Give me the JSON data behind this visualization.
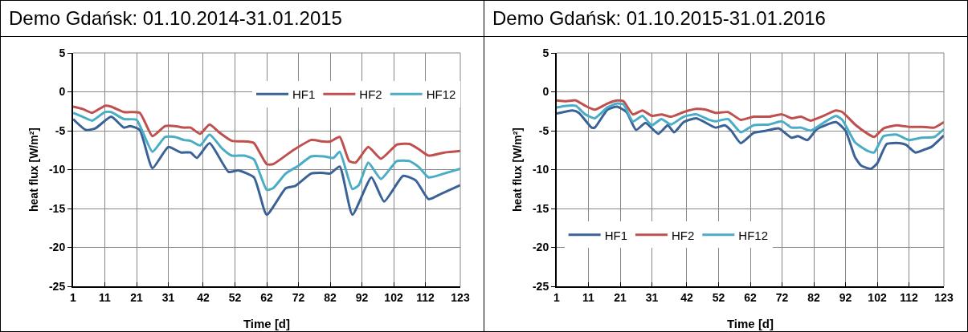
{
  "chart_data": [
    {
      "type": "line",
      "title": "Demo Gdańsk: 01.10.2014-31.01.2015",
      "xlabel": "Time [d]",
      "ylabel": "heat flux [W/m²]",
      "xlim": [
        1,
        123
      ],
      "xticks": [
        1,
        11,
        21,
        31,
        42,
        52,
        62,
        72,
        82,
        92,
        102,
        112,
        123
      ],
      "ylim": [
        -25,
        5
      ],
      "yticks": [
        -25,
        -20,
        -15,
        -10,
        -5,
        0,
        5
      ],
      "grid": true,
      "legend": "top right",
      "marker": "none",
      "line_style": "solid",
      "series": [
        {
          "name": "HF1",
          "color": "#3a6296",
          "x": [
            1,
            5,
            8,
            13,
            17,
            19,
            22,
            26,
            31,
            35,
            38,
            40,
            44,
            50,
            53,
            58,
            62,
            68,
            71,
            76,
            79,
            82,
            85,
            89,
            95,
            99,
            105,
            109,
            113,
            117,
            123
          ],
          "values": [
            -3.5,
            -4.9,
            -4.7,
            -3.2,
            -4.6,
            -4.4,
            -4.9,
            -9.8,
            -7.1,
            -7.8,
            -7.8,
            -8.5,
            -6.6,
            -10.3,
            -10.1,
            -11.0,
            -15.8,
            -12.4,
            -12.1,
            -10.5,
            -10.4,
            -10.5,
            -9.6,
            -15.8,
            -11.0,
            -14.1,
            -10.8,
            -11.4,
            -13.8,
            -13.1,
            -12.0
          ]
        },
        {
          "name": "HF2",
          "color": "#c0504d",
          "x": [
            1,
            4,
            7,
            11,
            13,
            17,
            22,
            26,
            30,
            33,
            36,
            38,
            41,
            44,
            47,
            51,
            56,
            58,
            62,
            64,
            70,
            76,
            80,
            82,
            85,
            88,
            90,
            94,
            98,
            103,
            107,
            110,
            113,
            118,
            123
          ],
          "values": [
            -1.9,
            -2.2,
            -2.7,
            -1.8,
            -1.9,
            -2.6,
            -2.7,
            -5.7,
            -4.4,
            -4.4,
            -4.6,
            -4.6,
            -5.4,
            -4.2,
            -5.2,
            -6.3,
            -6.4,
            -6.6,
            -9.3,
            -9.3,
            -7.6,
            -6.2,
            -6.4,
            -6.4,
            -5.8,
            -8.9,
            -9.1,
            -7.1,
            -8.6,
            -6.8,
            -6.7,
            -7.4,
            -8.2,
            -7.8,
            -7.6
          ]
        },
        {
          "name": "HF12",
          "color": "#4bacc6",
          "x": [
            1,
            4,
            7,
            11,
            13,
            17,
            21,
            26,
            30,
            33,
            36,
            38,
            41,
            44,
            48,
            51,
            55,
            58,
            62,
            64,
            68,
            72,
            76,
            80,
            83,
            85,
            89,
            91,
            94,
            98,
            103,
            107,
            110,
            113,
            118,
            123
          ],
          "values": [
            -2.7,
            -3.2,
            -3.7,
            -2.6,
            -2.6,
            -3.5,
            -3.6,
            -7.7,
            -5.8,
            -5.8,
            -6.2,
            -6.3,
            -6.9,
            -5.5,
            -7.3,
            -8.2,
            -8.2,
            -8.7,
            -12.6,
            -12.4,
            -10.5,
            -9.5,
            -8.3,
            -8.3,
            -8.5,
            -7.7,
            -12.5,
            -12.0,
            -9.1,
            -11.2,
            -8.9,
            -8.9,
            -9.7,
            -11.0,
            -10.5,
            -9.9
          ]
        }
      ]
    },
    {
      "type": "line",
      "title": "Demo Gdańsk: 01.10.2015-31.01.2016",
      "xlabel": "Time [d]",
      "ylabel": "heat flux [W/m²]",
      "xlim": [
        1,
        123
      ],
      "xticks": [
        1,
        11,
        21,
        31,
        42,
        52,
        62,
        72,
        82,
        92,
        102,
        112,
        123
      ],
      "ylim": [
        -25,
        5
      ],
      "yticks": [
        -25,
        -20,
        -15,
        -10,
        -5,
        0,
        5
      ],
      "grid": true,
      "legend": "bottom left",
      "marker": "none",
      "line_style": "solid",
      "series": [
        {
          "name": "HF1",
          "color": "#3a6296",
          "x": [
            1,
            6,
            8,
            12,
            13,
            17,
            20,
            23,
            26,
            29,
            33,
            36,
            38,
            41,
            45,
            51,
            54,
            56,
            59,
            63,
            67,
            71,
            75,
            77,
            80,
            83,
            89,
            92,
            95,
            97,
            100,
            102,
            105,
            109,
            111,
            114,
            117,
            119,
            123
          ],
          "values": [
            -2.8,
            -2.4,
            -2.7,
            -4.6,
            -4.6,
            -2.3,
            -1.9,
            -2.6,
            -4.9,
            -4.0,
            -5.4,
            -4.3,
            -5.2,
            -3.9,
            -3.4,
            -4.6,
            -4.3,
            -5.0,
            -6.6,
            -5.3,
            -5.0,
            -4.7,
            -5.9,
            -5.7,
            -6.2,
            -4.8,
            -3.9,
            -5.0,
            -8.4,
            -9.5,
            -9.9,
            -9.2,
            -6.7,
            -6.6,
            -6.8,
            -7.8,
            -7.4,
            -7.1,
            -5.6
          ]
        },
        {
          "name": "HF2",
          "color": "#c0504d",
          "x": [
            1,
            4,
            7,
            10,
            13,
            17,
            20,
            22,
            25,
            28,
            31,
            34,
            37,
            41,
            45,
            48,
            51,
            55,
            59,
            63,
            68,
            72,
            75,
            78,
            81,
            85,
            89,
            91,
            95,
            99,
            101,
            104,
            108,
            112,
            116,
            120,
            123
          ],
          "values": [
            -1.1,
            -1.2,
            -1.1,
            -1.8,
            -2.3,
            -1.5,
            -1.1,
            -1.2,
            -2.9,
            -2.4,
            -3.1,
            -2.9,
            -3.2,
            -2.6,
            -2.2,
            -2.3,
            -2.7,
            -2.6,
            -3.6,
            -3.2,
            -3.2,
            -2.9,
            -3.4,
            -3.2,
            -3.7,
            -3.1,
            -2.4,
            -2.6,
            -4.2,
            -5.4,
            -5.8,
            -4.7,
            -4.3,
            -4.5,
            -4.5,
            -4.6,
            -3.9
          ]
        },
        {
          "name": "HF12",
          "color": "#4bacc6",
          "x": [
            1,
            4,
            7,
            10,
            13,
            17,
            20,
            22,
            25,
            28,
            31,
            34,
            37,
            41,
            45,
            49,
            51,
            55,
            59,
            63,
            68,
            72,
            75,
            78,
            81,
            85,
            89,
            91,
            95,
            99,
            101,
            104,
            108,
            112,
            116,
            120,
            123
          ],
          "values": [
            -2.0,
            -1.8,
            -1.8,
            -2.9,
            -3.4,
            -2.0,
            -1.5,
            -1.6,
            -3.8,
            -3.1,
            -4.3,
            -3.5,
            -4.2,
            -3.2,
            -2.9,
            -3.6,
            -3.8,
            -3.5,
            -5.2,
            -4.3,
            -4.2,
            -3.8,
            -4.6,
            -4.6,
            -5.0,
            -4.0,
            -3.1,
            -3.6,
            -6.5,
            -7.6,
            -7.8,
            -5.7,
            -5.5,
            -6.2,
            -5.9,
            -5.8,
            -4.8
          ]
        }
      ]
    }
  ]
}
